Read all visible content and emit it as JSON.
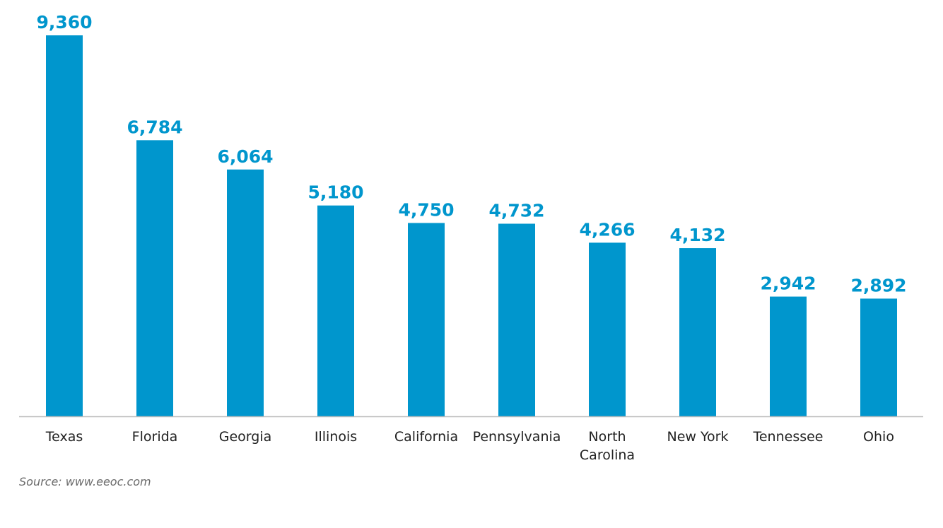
{
  "chart_data": {
    "type": "bar",
    "categories": [
      [
        "Texas"
      ],
      [
        "Florida"
      ],
      [
        "Georgia"
      ],
      [
        "Illinois"
      ],
      [
        "California"
      ],
      [
        "Pennsylvania"
      ],
      [
        "North",
        "Carolina"
      ],
      [
        "New York"
      ],
      [
        "Tennessee"
      ],
      [
        "Ohio"
      ]
    ],
    "values": [
      9360,
      6784,
      6064,
      5180,
      4750,
      4732,
      4266,
      4132,
      2942,
      2892
    ],
    "value_labels": [
      "9,360",
      "6,784",
      "6,064",
      "5,180",
      "4,750",
      "4,732",
      "4,266",
      "4,132",
      "2,942",
      "2,892"
    ],
    "title": "",
    "xlabel": "",
    "ylabel": "",
    "ylim": [
      0,
      9360
    ],
    "grid": false,
    "bar_color": "#0096cd",
    "label_color": "#0096cd",
    "axis_color": "#bdbdbd"
  },
  "source_note": "Source: www.eeoc.com"
}
